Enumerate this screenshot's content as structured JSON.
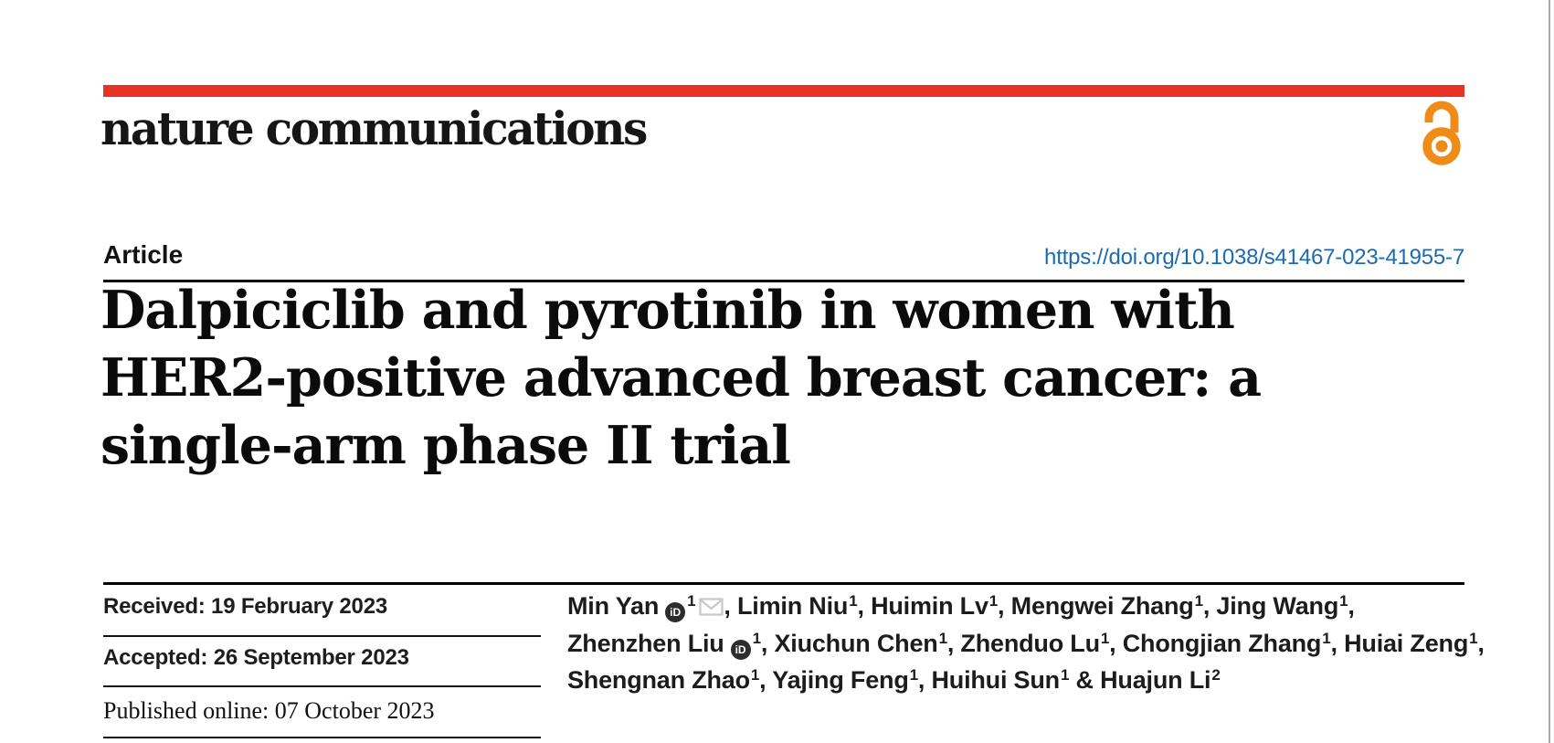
{
  "brand": {
    "journal_name": "nature communications",
    "accent_red": "#e63323",
    "open_access_icon": "open-lock-icon",
    "open_access_color": "#ef8c17"
  },
  "header": {
    "article_label": "Article",
    "doi_link": "https://doi.org/10.1038/s41467-023-41955-7",
    "doi_color": "#1a6bb0"
  },
  "title": {
    "lines": [
      "Dalpiciclib and pyrotinib in women with",
      "HER2-positive advanced breast cancer: a",
      "single-arm phase II trial"
    ]
  },
  "history": [
    {
      "text": "Received: 19 February 2023"
    },
    {
      "text": "Accepted: 26 September 2023"
    },
    {
      "text": "Published online: 07 October 2023"
    }
  ],
  "authors": {
    "icons": {
      "orcid": "orcid-icon",
      "email": "envelope-icon"
    },
    "orcid_glyph": "iD",
    "lines": [
      [
        {
          "t": "Min Yan"
        },
        {
          "i": "orcid"
        },
        {
          "s": "1"
        },
        {
          "i": "email"
        },
        {
          "t": ", Limin Niu"
        },
        {
          "s": "1"
        },
        {
          "t": ", Huimin Lv"
        },
        {
          "s": "1"
        },
        {
          "t": ", Mengwei Zhang"
        },
        {
          "s": "1"
        },
        {
          "t": ", Jing Wang"
        },
        {
          "s": "1"
        },
        {
          "t": ","
        }
      ],
      [
        {
          "t": "Zhenzhen Liu"
        },
        {
          "i": "orcid"
        },
        {
          "s": "1"
        },
        {
          "t": ", Xiuchun Chen"
        },
        {
          "s": "1"
        },
        {
          "t": ", Zhenduo Lu"
        },
        {
          "s": "1"
        },
        {
          "t": ", Chongjian Zhang"
        },
        {
          "s": "1"
        },
        {
          "t": ", Huiai Zeng"
        },
        {
          "s": "1"
        },
        {
          "t": ","
        }
      ],
      [
        {
          "t": "Shengnan Zhao"
        },
        {
          "s": "1"
        },
        {
          "t": ", Yajing Feng"
        },
        {
          "s": "1"
        },
        {
          "t": ", Huihui Sun"
        },
        {
          "s": "1"
        },
        {
          "t": " & Huajun Li"
        },
        {
          "s": "2"
        }
      ]
    ]
  }
}
